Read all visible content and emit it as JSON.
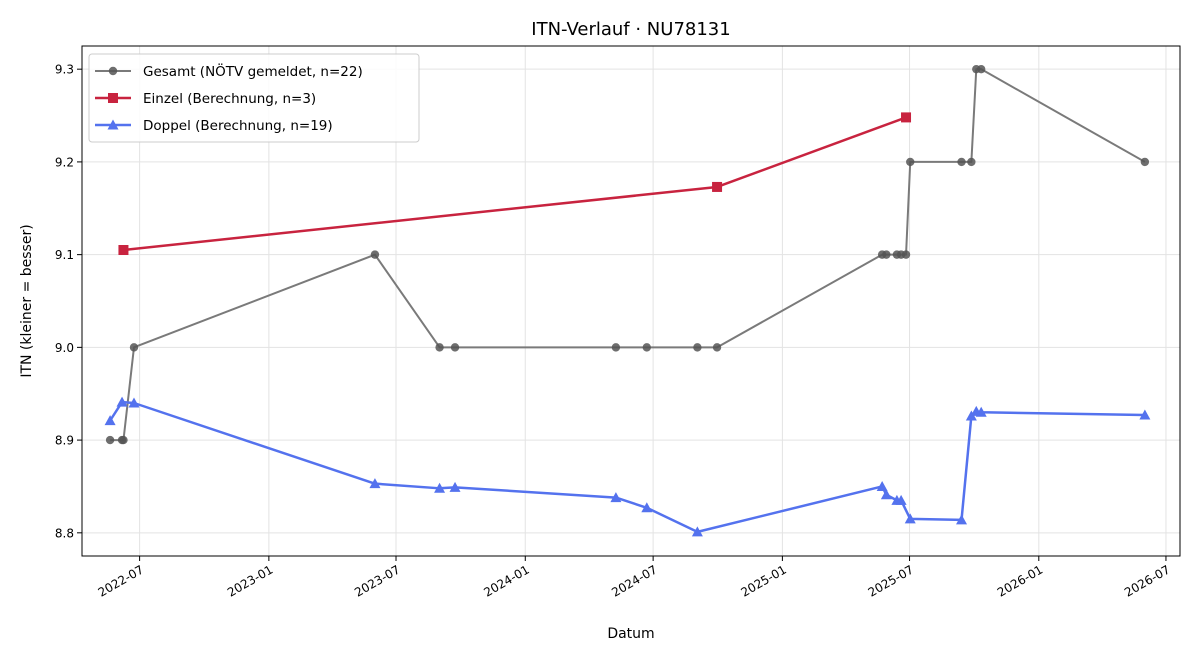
{
  "chart_data": {
    "type": "line",
    "title": "ITN-Verlauf · NU78131",
    "xlabel": "Datum",
    "ylabel": "ITN  (kleiner = besser)",
    "x_type": "date",
    "xlim": [
      "2022-04-10",
      "2026-07-21"
    ],
    "ylim": [
      8.775,
      9.325
    ],
    "x_ticks": [
      "2022-07-01",
      "2023-01-01",
      "2023-07-01",
      "2024-01-01",
      "2024-07-01",
      "2025-01-01",
      "2025-07-01",
      "2026-01-01",
      "2026-07-01"
    ],
    "x_tick_labels": [
      "2022-07",
      "2023-01",
      "2023-07",
      "2024-01",
      "2024-07",
      "2025-01",
      "2025-07",
      "2026-01",
      "2026-07"
    ],
    "y_ticks": [
      8.8,
      8.9,
      9.0,
      9.1,
      9.2,
      9.3
    ],
    "y_tick_labels": [
      "8.8",
      "8.9",
      "9.0",
      "9.1",
      "9.2",
      "9.3"
    ],
    "grid": true,
    "legend_position": "top-left",
    "series": [
      {
        "name": "Gesamt (NÖTV gemeldet, n=22)",
        "color": "#7a7a7a",
        "marker_color": "#555555",
        "marker": "circle",
        "points": [
          {
            "x": "2022-05-20",
            "y": 8.9
          },
          {
            "x": "2022-06-06",
            "y": 8.9
          },
          {
            "x": "2022-06-08",
            "y": 8.9
          },
          {
            "x": "2022-06-23",
            "y": 9.0
          },
          {
            "x": "2023-06-01",
            "y": 9.1
          },
          {
            "x": "2023-09-01",
            "y": 9.0
          },
          {
            "x": "2023-09-23",
            "y": 9.0
          },
          {
            "x": "2024-05-09",
            "y": 9.0
          },
          {
            "x": "2024-06-22",
            "y": 9.0
          },
          {
            "x": "2024-09-02",
            "y": 9.0
          },
          {
            "x": "2024-09-30",
            "y": 9.0
          },
          {
            "x": "2025-05-23",
            "y": 9.1
          },
          {
            "x": "2025-05-29",
            "y": 9.1
          },
          {
            "x": "2025-06-13",
            "y": 9.1
          },
          {
            "x": "2025-06-19",
            "y": 9.1
          },
          {
            "x": "2025-06-26",
            "y": 9.1
          },
          {
            "x": "2025-07-02",
            "y": 9.2
          },
          {
            "x": "2025-09-13",
            "y": 9.2
          },
          {
            "x": "2025-09-27",
            "y": 9.2
          },
          {
            "x": "2025-10-04",
            "y": 9.3
          },
          {
            "x": "2025-10-11",
            "y": 9.3
          },
          {
            "x": "2026-06-01",
            "y": 9.2
          }
        ]
      },
      {
        "name": "Einzel (Berechnung, n=3)",
        "color": "#c8233f",
        "marker_color": "#c8233f",
        "marker": "square",
        "points": [
          {
            "x": "2022-06-08",
            "y": 9.105
          },
          {
            "x": "2024-09-30",
            "y": 9.173
          },
          {
            "x": "2025-06-26",
            "y": 9.248
          }
        ]
      },
      {
        "name": "Doppel (Berechnung, n=19)",
        "color": "#5472ee",
        "marker_color": "#5472ee",
        "marker": "triangle",
        "points": [
          {
            "x": "2022-05-20",
            "y": 8.921
          },
          {
            "x": "2022-06-06",
            "y": 8.941
          },
          {
            "x": "2022-06-23",
            "y": 8.94
          },
          {
            "x": "2023-06-01",
            "y": 8.853
          },
          {
            "x": "2023-09-01",
            "y": 8.848
          },
          {
            "x": "2023-09-23",
            "y": 8.849
          },
          {
            "x": "2024-05-09",
            "y": 8.838
          },
          {
            "x": "2024-06-22",
            "y": 8.827
          },
          {
            "x": "2024-09-02",
            "y": 8.801
          },
          {
            "x": "2025-05-23",
            "y": 8.85
          },
          {
            "x": "2025-05-29",
            "y": 8.841
          },
          {
            "x": "2025-06-13",
            "y": 8.835
          },
          {
            "x": "2025-06-19",
            "y": 8.835
          },
          {
            "x": "2025-07-02",
            "y": 8.815
          },
          {
            "x": "2025-09-13",
            "y": 8.814
          },
          {
            "x": "2025-09-27",
            "y": 8.926
          },
          {
            "x": "2025-10-04",
            "y": 8.931
          },
          {
            "x": "2025-10-11",
            "y": 8.93
          },
          {
            "x": "2026-06-01",
            "y": 8.927
          }
        ]
      }
    ]
  }
}
